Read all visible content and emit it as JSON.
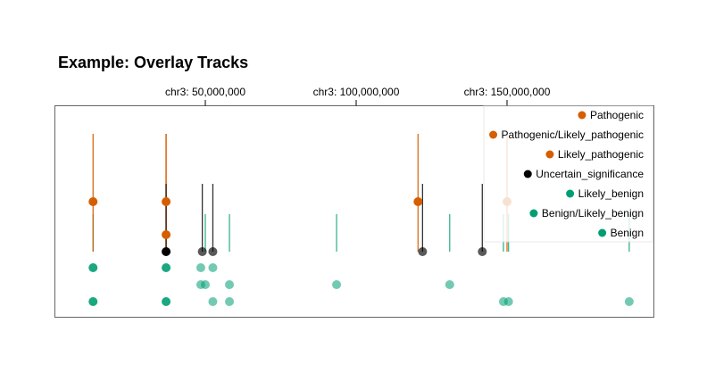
{
  "chart_data": {
    "type": "scatter",
    "title": "Example: Overlay Tracks",
    "x_axis": {
      "position": "top",
      "ticks": [
        {
          "value": 50000000,
          "label": "chr3: 50,000,000"
        },
        {
          "value": 100000000,
          "label": "chr3: 100,000,000"
        },
        {
          "value": 150000000,
          "label": "chr3: 150,000,000"
        }
      ]
    },
    "categories": [
      "Pathogenic",
      "Pathogenic/Likely_pathogenic",
      "Likely_pathogenic",
      "Uncertain_significance",
      "Likely_benign",
      "Benign/Likely_benign",
      "Benign"
    ],
    "colors": {
      "Pathogenic": "#D55E00",
      "Pathogenic/Likely_pathogenic": "#D55E00",
      "Likely_pathogenic": "#D55E00",
      "Uncertain_significance": "#000000",
      "Likely_benign": "#009E73",
      "Benign/Likely_benign": "#009E73",
      "Benign": "#009E73"
    },
    "legend_position": "top-right",
    "tracks": [
      {
        "name": "lollipop",
        "lollipops": [
          {
            "x": 12800000,
            "category": "Pathogenic",
            "level": "high"
          },
          {
            "x": 37000000,
            "category": "Pathogenic",
            "level": "high"
          },
          {
            "x": 37000000,
            "category": "Pathogenic",
            "level": "mid"
          },
          {
            "x": 37000000,
            "category": "Uncertain_significance",
            "level": "low"
          },
          {
            "x": 49000000,
            "category": "Uncertain_significance",
            "level": "low"
          },
          {
            "x": 52500000,
            "category": "Uncertain_significance",
            "level": "low"
          },
          {
            "x": 120500000,
            "category": "Pathogenic",
            "level": "high"
          },
          {
            "x": 122000000,
            "category": "Uncertain_significance",
            "level": "low"
          },
          {
            "x": 141800000,
            "category": "Uncertain_significance",
            "level": "low"
          },
          {
            "x": 150000000,
            "category": "Pathogenic",
            "level": "high"
          }
        ],
        "benign_bars": [
          12800000,
          50000000,
          58000000,
          93500000,
          131000000,
          148800000,
          150500000,
          190500000
        ]
      },
      {
        "name": "benign-dots",
        "rows": [
          {
            "category": "Likely_benign",
            "x": [
              12800000,
              37000000,
              48500000,
              52500000
            ]
          },
          {
            "category": "Benign/Likely_benign",
            "x": [
              48500000,
              50000000,
              58000000,
              93500000,
              131000000
            ]
          },
          {
            "category": "Benign",
            "x": [
              12800000,
              37000000,
              52500000,
              58000000,
              148800000,
              150500000,
              190500000
            ]
          }
        ]
      }
    ]
  }
}
